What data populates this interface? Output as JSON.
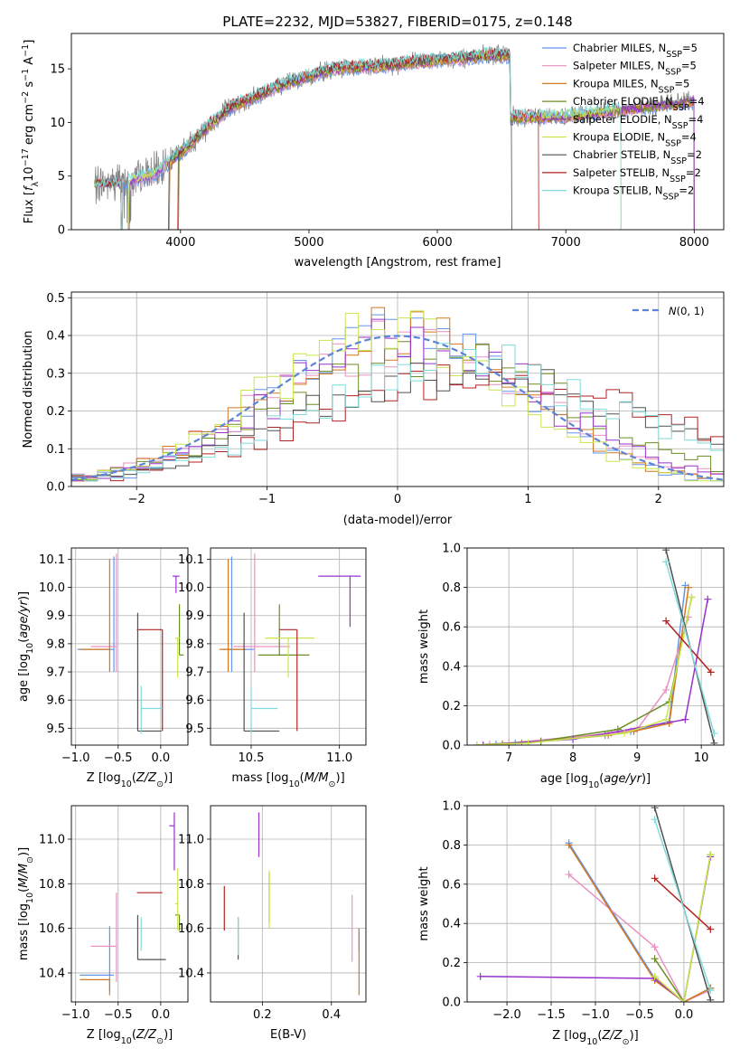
{
  "figure_title": "PLATE=2232, MJD=53827, FIBERID=0175, z=0.148",
  "models": [
    {
      "name": "Chabrier MILES, N_SSP=5",
      "imf": "Chabrier",
      "lib": "MILES",
      "nssp": "5",
      "color": "#6495ed"
    },
    {
      "name": "Salpeter MILES, N_SSP=5",
      "imf": "Salpeter",
      "lib": "MILES",
      "nssp": "5",
      "color": "#e991c1"
    },
    {
      "name": "Kroupa MILES, N_SSP=5",
      "imf": "Kroupa",
      "lib": "MILES",
      "nssp": "5",
      "color": "#d2781e"
    },
    {
      "name": "Chabrier ELODIE, N_SSP=4",
      "imf": "Chabrier",
      "lib": "ELODIE",
      "nssp": "4",
      "color": "#6b8e23"
    },
    {
      "name": "Salpeter ELODIE, N_SSP=4",
      "imf": "Salpeter",
      "lib": "ELODIE",
      "nssp": "4",
      "color": "#9932cc"
    },
    {
      "name": "Kroupa ELODIE, N_SSP=4",
      "imf": "Kroupa",
      "lib": "ELODIE",
      "nssp": "4",
      "color": "#c8e64b"
    },
    {
      "name": "Chabrier STELIB, N_SSP=2",
      "imf": "Chabrier",
      "lib": "STELIB",
      "nssp": "2",
      "color": "#505050"
    },
    {
      "name": "Salpeter STELIB, N_SSP=2",
      "imf": "Salpeter",
      "lib": "STELIB",
      "nssp": "2",
      "color": "#b22222"
    },
    {
      "name": "Kroupa STELIB, N_SSP=2",
      "imf": "Kroupa",
      "lib": "STELIB",
      "nssp": "2",
      "color": "#7fdbdb"
    }
  ],
  "chart_data": [
    {
      "id": "spectrum",
      "type": "line",
      "xlabel": "wavelength [Angstrom, rest frame]",
      "ylabel": "Flux [f_λ 10^-17 erg cm^-2 s^-1 A^-1]",
      "xlim": [
        3150,
        8230
      ],
      "ylim": [
        0,
        18.3
      ],
      "xticks": [
        4000,
        5000,
        6000,
        7000,
        8000
      ],
      "yticks": [
        0,
        5,
        10,
        15
      ],
      "grid": false,
      "legend": "top-right",
      "observed_color": "#808080",
      "continuum_anchors": {
        "x": [
          3350,
          3600,
          3800,
          4000,
          4200,
          4400,
          4600,
          4800,
          5000,
          5200,
          5400,
          5600,
          5800,
          6000,
          6200,
          6400,
          6560
        ],
        "y": [
          4.3,
          4.5,
          5.2,
          7.2,
          9.5,
          11.5,
          12.5,
          13.6,
          14.3,
          15.0,
          15.2,
          15.3,
          15.6,
          15.8,
          16.0,
          16.3,
          16.2
        ]
      },
      "red_continuum": {
        "x": [
          6580,
          7000,
          7500,
          8000
        ],
        "y": [
          10.5,
          10.6,
          11.3,
          12.0
        ]
      },
      "fit_cutoffs": {
        "blue": [
          3550,
          3590,
          3890,
          3950
        ],
        "red": [
          6580,
          6790,
          7430
        ]
      }
    },
    {
      "id": "residuals",
      "type": "step",
      "xlabel": "(data-model)/error",
      "ylabel": "Normed distribution",
      "xlim": [
        -2.5,
        2.5
      ],
      "ylim": [
        0,
        0.515
      ],
      "xticks": [
        -2,
        -1,
        0,
        1,
        2
      ],
      "yticks": [
        0.0,
        0.1,
        0.2,
        0.3,
        0.4,
        0.5
      ],
      "grid": true,
      "legend": "top-right",
      "reference_curve": {
        "name": "N(0,1)",
        "color": "#5b84d6",
        "style": "dashed"
      },
      "bin_width": 0.1,
      "series_shapes": [
        {
          "sigma": 0.95,
          "mu": 0.0
        },
        {
          "sigma": 1.05,
          "mu": 0.05
        },
        {
          "sigma": 1.0,
          "mu": 0.0
        },
        {
          "sigma": 1.15,
          "mu": 0.25
        },
        {
          "sigma": 1.0,
          "mu": 0.1
        },
        {
          "sigma": 0.95,
          "mu": -0.05
        },
        {
          "sigma": 1.3,
          "mu": 0.6
        },
        {
          "sigma": 1.35,
          "mu": 0.7
        },
        {
          "sigma": 1.25,
          "mu": 0.55
        }
      ]
    },
    {
      "id": "Z_vs_age",
      "type": "errorbar",
      "xlabel": "Z [log10(Z/Z⊙)]",
      "ylabel": "age  [log10(age/yr)]",
      "xlim": [
        -1.05,
        0.32
      ],
      "ylim": [
        9.44,
        10.14
      ],
      "xticks": [
        -1.0,
        -0.5,
        0.0
      ],
      "yticks": [
        9.5,
        9.6,
        9.7,
        9.8,
        9.9,
        10.0,
        10.1
      ],
      "grid": true,
      "points": [
        {
          "x": -0.55,
          "xerr": [
            0.43,
            0.0
          ],
          "y": 9.78,
          "yerr": [
            0.08,
            0.33
          ]
        },
        {
          "x": -0.52,
          "xerr": [
            0.3,
            0.0
          ],
          "y": 9.79,
          "yerr": [
            0.09,
            0.33
          ]
        },
        {
          "x": -0.6,
          "xerr": [
            0.35,
            0.0
          ],
          "y": 9.78,
          "yerr": [
            0.08,
            0.32
          ]
        },
        {
          "x": 0.22,
          "xerr": [
            0.0,
            0.05
          ],
          "y": 9.76,
          "yerr": [
            0.0,
            0.18
          ]
        },
        {
          "x": 0.18,
          "xerr": [
            0.04,
            0.04
          ],
          "y": 10.04,
          "yerr": [
            0.06,
            0.0
          ]
        },
        {
          "x": 0.2,
          "xerr": [
            0.03,
            0.03
          ],
          "y": 9.82,
          "yerr": [
            0.14,
            0.0
          ]
        },
        {
          "x": -0.27,
          "xerr": [
            0.0,
            0.28
          ],
          "y": 9.49,
          "yerr": [
            0.0,
            0.42
          ]
        },
        {
          "x": 0.02,
          "xerr": [
            0.3,
            0.0
          ],
          "y": 9.85,
          "yerr": [
            0.36,
            0.0
          ]
        },
        {
          "x": -0.23,
          "xerr": [
            0.0,
            0.25
          ],
          "y": 9.57,
          "yerr": [
            0.09,
            0.08
          ]
        }
      ]
    },
    {
      "id": "mass_vs_age",
      "type": "errorbar",
      "xlabel": "mass [log10(M/M⊙)]",
      "ylabel": "",
      "xlim": [
        10.27,
        11.15
      ],
      "ylim": [
        9.44,
        10.14
      ],
      "xticks": [
        10.5,
        11.0
      ],
      "yticks": [
        9.5,
        9.6,
        9.7,
        9.8,
        9.9,
        10.0,
        10.1
      ],
      "grid": true,
      "points": [
        {
          "x": 10.39,
          "xerr": [
            0.05,
            0.13
          ],
          "y": 9.78,
          "yerr": [
            0.08,
            0.33
          ]
        },
        {
          "x": 10.52,
          "xerr": [
            0.12,
            0.2
          ],
          "y": 9.79,
          "yerr": [
            0.09,
            0.33
          ]
        },
        {
          "x": 10.37,
          "xerr": [
            0.05,
            0.1
          ],
          "y": 9.78,
          "yerr": [
            0.08,
            0.32
          ]
        },
        {
          "x": 10.66,
          "xerr": [
            0.12,
            0.17
          ],
          "y": 9.76,
          "yerr": [
            0.0,
            0.18
          ]
        },
        {
          "x": 11.06,
          "xerr": [
            0.18,
            0.06
          ],
          "y": 10.04,
          "yerr": [
            0.18,
            0.0
          ]
        },
        {
          "x": 10.71,
          "xerr": [
            0.13,
            0.15
          ],
          "y": 9.82,
          "yerr": [
            0.14,
            0.0
          ]
        },
        {
          "x": 10.46,
          "xerr": [
            0.0,
            0.2
          ],
          "y": 9.49,
          "yerr": [
            0.0,
            0.42
          ]
        },
        {
          "x": 10.76,
          "xerr": [
            0.1,
            0.0
          ],
          "y": 9.85,
          "yerr": [
            0.36,
            0.0
          ]
        },
        {
          "x": 10.5,
          "xerr": [
            0.0,
            0.15
          ],
          "y": 9.57,
          "yerr": [
            0.09,
            0.08
          ]
        }
      ]
    },
    {
      "id": "age_vs_weight",
      "type": "line",
      "xlabel": "age  [log10(age/yr)]",
      "ylabel": "mass weight",
      "xlim": [
        6.35,
        10.35
      ],
      "ylim": [
        0,
        1.0
      ],
      "xticks": [
        7,
        8,
        9,
        10
      ],
      "yticks": [
        0.0,
        0.2,
        0.4,
        0.6,
        0.8,
        1.0
      ],
      "grid": true,
      "series": [
        {
          "x": [
            6.8,
            7.1,
            8.5,
            8.9,
            9.5,
            9.75
          ],
          "y": [
            0.005,
            0.01,
            0.05,
            0.07,
            0.12,
            0.81
          ]
        },
        {
          "x": [
            6.7,
            7.0,
            8.6,
            9.0,
            9.45,
            9.8
          ],
          "y": [
            0.005,
            0.01,
            0.06,
            0.08,
            0.28,
            0.65
          ]
        },
        {
          "x": [
            6.9,
            7.2,
            8.55,
            8.95,
            9.5,
            9.8
          ],
          "y": [
            0.005,
            0.01,
            0.05,
            0.07,
            0.11,
            0.8
          ]
        },
        {
          "x": [
            6.5,
            7.5,
            8.7,
            9.5,
            9.85
          ],
          "y": [
            0.0,
            0.02,
            0.08,
            0.22,
            0.75
          ]
        },
        {
          "x": [
            6.6,
            8.0,
            9.75,
            10.1
          ],
          "y": [
            0.0,
            0.03,
            0.13,
            0.74
          ]
        },
        {
          "x": [
            6.5,
            7.3,
            8.8,
            9.45,
            9.85
          ],
          "y": [
            0.0,
            0.01,
            0.06,
            0.13,
            0.75
          ]
        },
        {
          "x": [
            9.45,
            10.2
          ],
          "y": [
            0.99,
            0.01
          ]
        },
        {
          "x": [
            9.45,
            10.15
          ],
          "y": [
            0.63,
            0.37
          ]
        },
        {
          "x": [
            9.45,
            10.2
          ],
          "y": [
            0.93,
            0.06
          ]
        }
      ]
    },
    {
      "id": "Z_vs_mass",
      "type": "errorbar",
      "xlabel": "Z [log10(Z/Z⊙)]",
      "ylabel": "mass [log10(M/M⊙)]",
      "xlim": [
        -1.05,
        0.32
      ],
      "ylim": [
        10.27,
        11.15
      ],
      "xticks": [
        -1.0,
        -0.5,
        0.0
      ],
      "yticks": [
        10.4,
        10.6,
        10.8,
        11.0
      ],
      "grid": true,
      "points": [
        {
          "x": -0.6,
          "xerr": [
            0.35,
            0.05
          ],
          "y": 10.39,
          "yerr": [
            0.07,
            0.22
          ]
        },
        {
          "x": -0.52,
          "xerr": [
            0.3,
            0.0
          ],
          "y": 10.52,
          "yerr": [
            0.16,
            0.24
          ]
        },
        {
          "x": -0.6,
          "xerr": [
            0.35,
            0.0
          ],
          "y": 10.37,
          "yerr": [
            0.07,
            0.0
          ]
        },
        {
          "x": 0.22,
          "xerr": [
            0.05,
            0.0
          ],
          "y": 10.66,
          "yerr": [
            0.07,
            0.0
          ]
        },
        {
          "x": 0.16,
          "xerr": [
            0.06,
            0.0
          ],
          "y": 11.06,
          "yerr": [
            0.2,
            0.06
          ]
        },
        {
          "x": 0.2,
          "xerr": [
            0.03,
            0.0
          ],
          "y": 10.71,
          "yerr": [
            0.12,
            0.16
          ]
        },
        {
          "x": -0.27,
          "xerr": [
            0.0,
            0.33
          ],
          "y": 10.46,
          "yerr": [
            0.0,
            0.2
          ]
        },
        {
          "x": 0.02,
          "xerr": [
            0.3,
            0.0
          ],
          "y": 10.76,
          "yerr": [
            0.0,
            0.0
          ]
        },
        {
          "x": -0.23,
          "xerr": [
            0.0,
            0.0
          ],
          "y": 10.5,
          "yerr": [
            0.0,
            0.15
          ]
        }
      ]
    },
    {
      "id": "EBV_vs_mass",
      "type": "errorbar",
      "xlabel": "E(B-V)",
      "ylabel": "",
      "xlim": [
        0.05,
        0.5
      ],
      "ylim": [
        10.27,
        11.15
      ],
      "xticks": [
        0.2,
        0.4
      ],
      "yticks": [
        10.4,
        10.6,
        10.8,
        11.0
      ],
      "grid": true,
      "points": [
        {
          "x": 0.48,
          "xerr": [
            0.0,
            0.0
          ],
          "y": 10.5,
          "yerr": [
            0.0,
            0.1
          ]
        },
        {
          "x": 0.46,
          "xerr": [
            0.0,
            0.0
          ],
          "y": 10.6,
          "yerr": [
            0.15,
            0.15
          ]
        },
        {
          "x": 0.48,
          "xerr": [
            0.0,
            0.0
          ],
          "y": 10.4,
          "yerr": [
            0.1,
            0.2
          ]
        },
        {
          "x": 0.22,
          "xerr": [
            0.0,
            0.0
          ],
          "y": 10.75,
          "yerr": [
            0.12,
            0.1
          ]
        },
        {
          "x": 0.19,
          "xerr": [
            0.0,
            0.0
          ],
          "y": 11.0,
          "yerr": [
            0.08,
            0.12
          ]
        },
        {
          "x": 0.22,
          "xerr": [
            0.0,
            0.0
          ],
          "y": 10.72,
          "yerr": [
            0.12,
            0.14
          ]
        },
        {
          "x": 0.13,
          "xerr": [
            0.0,
            0.0
          ],
          "y": 10.55,
          "yerr": [
            0.09,
            0.1
          ]
        },
        {
          "x": 0.09,
          "xerr": [
            0.0,
            0.0
          ],
          "y": 10.69,
          "yerr": [
            0.1,
            0.1
          ]
        },
        {
          "x": 0.13,
          "xerr": [
            0.0,
            0.0
          ],
          "y": 10.58,
          "yerr": [
            0.1,
            0.07
          ]
        }
      ]
    },
    {
      "id": "Z_vs_weight",
      "type": "line",
      "xlabel": "Z [log10(Z/Z⊙)]",
      "ylabel": "mass weight",
      "xlim": [
        -2.45,
        0.45
      ],
      "ylim": [
        0,
        1.0
      ],
      "xticks": [
        -2.0,
        -1.5,
        -1.0,
        -0.5,
        0.0
      ],
      "yticks": [
        0.0,
        0.2,
        0.4,
        0.6,
        0.8,
        1.0
      ],
      "grid": true,
      "series": [
        {
          "x": [
            -1.3,
            -0.33,
            0.0,
            0.3
          ],
          "y": [
            0.81,
            0.12,
            0.0,
            0.07
          ]
        },
        {
          "x": [
            -1.3,
            -0.33,
            0.0,
            0.3
          ],
          "y": [
            0.65,
            0.28,
            0.0,
            0.06
          ]
        },
        {
          "x": [
            -1.3,
            -0.33,
            0.0,
            0.3
          ],
          "y": [
            0.8,
            0.11,
            0.0,
            0.07
          ]
        },
        {
          "x": [
            -0.33,
            0.0,
            0.3
          ],
          "y": [
            0.22,
            0.0,
            0.75
          ]
        },
        {
          "x": [
            -2.3,
            -0.33,
            0.0,
            0.3
          ],
          "y": [
            0.13,
            0.12,
            0.0,
            0.74
          ]
        },
        {
          "x": [
            -0.33,
            0.0,
            0.3
          ],
          "y": [
            0.13,
            0.0,
            0.75
          ]
        },
        {
          "x": [
            -0.33,
            0.3
          ],
          "y": [
            0.99,
            0.01
          ]
        },
        {
          "x": [
            -0.33,
            0.3
          ],
          "y": [
            0.63,
            0.37
          ]
        },
        {
          "x": [
            -0.33,
            0.3
          ],
          "y": [
            0.93,
            0.06
          ]
        }
      ]
    }
  ]
}
